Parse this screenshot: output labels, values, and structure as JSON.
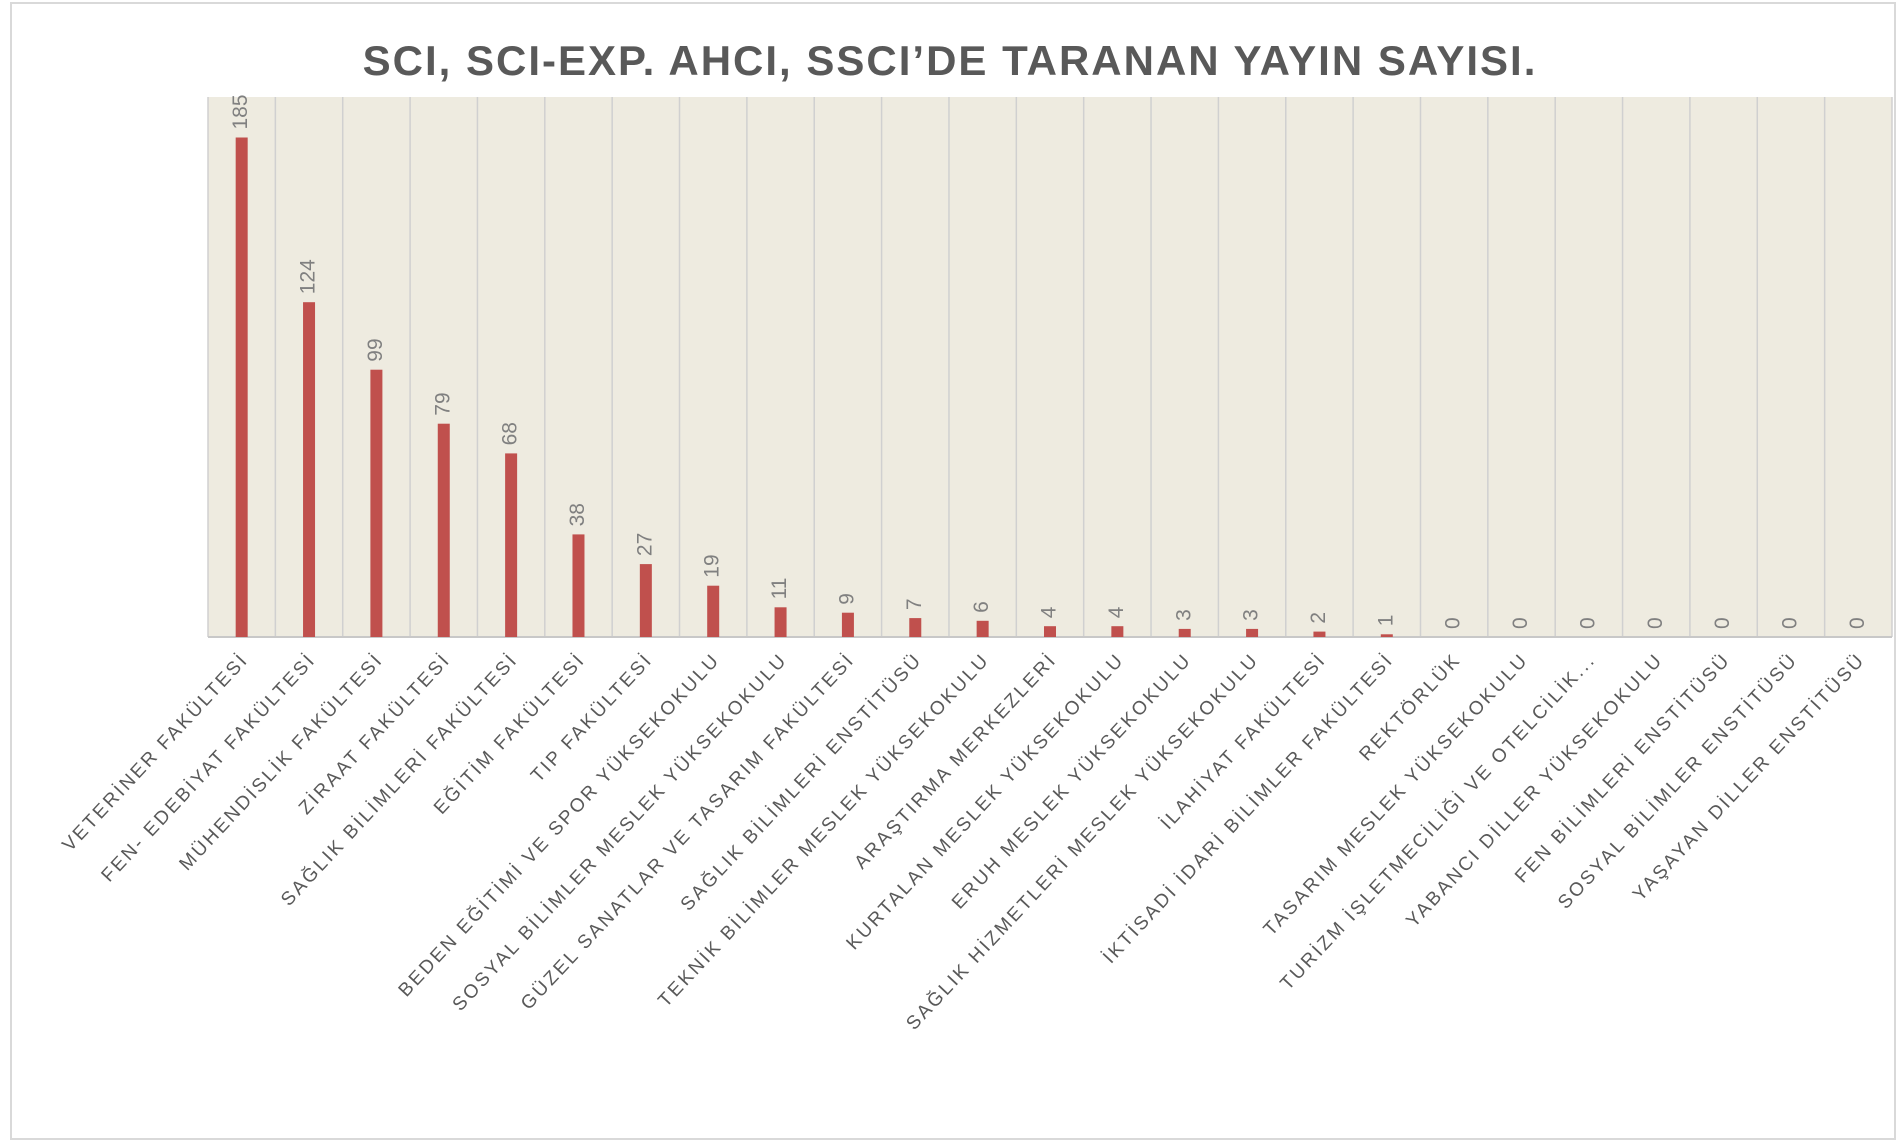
{
  "chart_data": {
    "type": "bar",
    "title": "SCI, SCI-EXP.  AHCI, SSCI’DE TARANAN  YAYIN  SAYISI.",
    "categories": [
      "VETERİNER FAKÜLTESİ",
      "FEN- EDEBİYAT FAKÜLTESİ",
      "MÜHENDİSLİK FAKÜLTESİ",
      "ZİRAAT FAKÜLTESİ",
      "SAĞLIK BİLİMLERİ FAKÜLTESİ",
      "EĞİTİM FAKÜLTESİ",
      "TIP FAKÜLTESİ",
      "BEDEN EĞİTİMİ VE SPOR YÜKSEKOKULU",
      "SOSYAL BİLİMLER MESLEK YÜKSEKOKULU",
      "GÜZEL SANATLAR VE TASARIM FAKÜLTESİ",
      "SAĞLIK BİLİMLERİ ENSTİTÜSÜ",
      "TEKNİK BİLİMLER MESLEK YÜKSEKOKULU",
      "ARAŞTIRMA MERKEZLERİ",
      "KURTALAN MESLEK YÜKSEKOKULU",
      "ERUH MESLEK YÜKSEKOKULU",
      "SAĞLIK HİZMETLERİ MESLEK YÜKSEKOKULU",
      "İLAHİYAT FAKÜLTESİ",
      "İKTİSADİ İDARİ BİLİMLER FAKÜLTESİ",
      "REKTÖRLÜK",
      "TASARIM MESLEK YÜKSEKOKULU",
      "TURİZM İŞLETMECİLİĞİ VE OTELCİLİK...",
      "YABANCI DİLLER YÜKSEKOKULU",
      "FEN BİLİMLERİ ENSTİTÜSÜ",
      "SOSYAL BİLİMLER ENSTİTÜSÜ",
      "YAŞAYAN DİLLER ENSTİTÜSÜ"
    ],
    "values": [
      185,
      124,
      99,
      79,
      68,
      38,
      27,
      19,
      11,
      9,
      7,
      6,
      4,
      4,
      3,
      3,
      2,
      1,
      0,
      0,
      0,
      0,
      0,
      0,
      0
    ],
    "color": "#c0504d",
    "ylim": [
      0,
      200
    ],
    "grid": true
  }
}
